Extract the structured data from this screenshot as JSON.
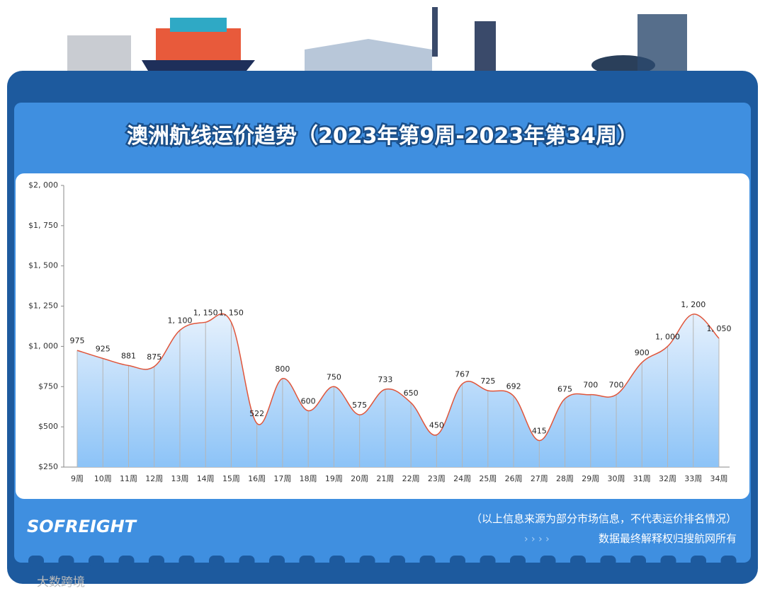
{
  "chart_data": {
    "type": "line",
    "title": "澳洲航线运价趋势（2023年第9周-2023年第34周）",
    "categories": [
      "9周",
      "10周",
      "11周",
      "12周",
      "13周",
      "14周",
      "15周",
      "16周",
      "17周",
      "18周",
      "19周",
      "20周",
      "21周",
      "22周",
      "23周",
      "24周",
      "25周",
      "26周",
      "27周",
      "28周",
      "29周",
      "30周",
      "31周",
      "32周",
      "33周",
      "34周"
    ],
    "values": [
      975,
      925,
      881,
      875,
      1100,
      1150,
      1150,
      522,
      800,
      600,
      750,
      575,
      733,
      650,
      450,
      767,
      725,
      692,
      415,
      675,
      700,
      700,
      900,
      1000,
      1200,
      1050
    ],
    "value_labels": [
      "975",
      "925",
      "881",
      "875",
      "1, 100",
      "1, 150",
      "1, 150",
      "522",
      "800",
      "600",
      "750",
      "575",
      "733",
      "650",
      "450",
      "767",
      "725",
      "692",
      "415",
      "675",
      "700",
      "700",
      "900",
      "1, 000",
      "1, 200",
      "1, 050"
    ],
    "color": "#e0553a",
    "ylim": [
      250,
      2000
    ],
    "yticks": [
      {
        "value": 250,
        "label": "$250"
      },
      {
        "value": 500,
        "label": "$500"
      },
      {
        "value": 750,
        "label": "$750"
      },
      {
        "value": 1000,
        "label": "$1, 000"
      },
      {
        "value": 1250,
        "label": "$1, 250"
      },
      {
        "value": 1500,
        "label": "$1, 500"
      },
      {
        "value": 1750,
        "label": "$1, 750"
      },
      {
        "value": 2000,
        "label": "$2, 000"
      }
    ]
  },
  "logo": "SOFREIGHT",
  "footer": {
    "note": "（以上信息来源为部分市场信息，不代表运价排名情况）",
    "copyright": "数据最终解释权归搜航网所有"
  },
  "watermark": "大数跨境"
}
